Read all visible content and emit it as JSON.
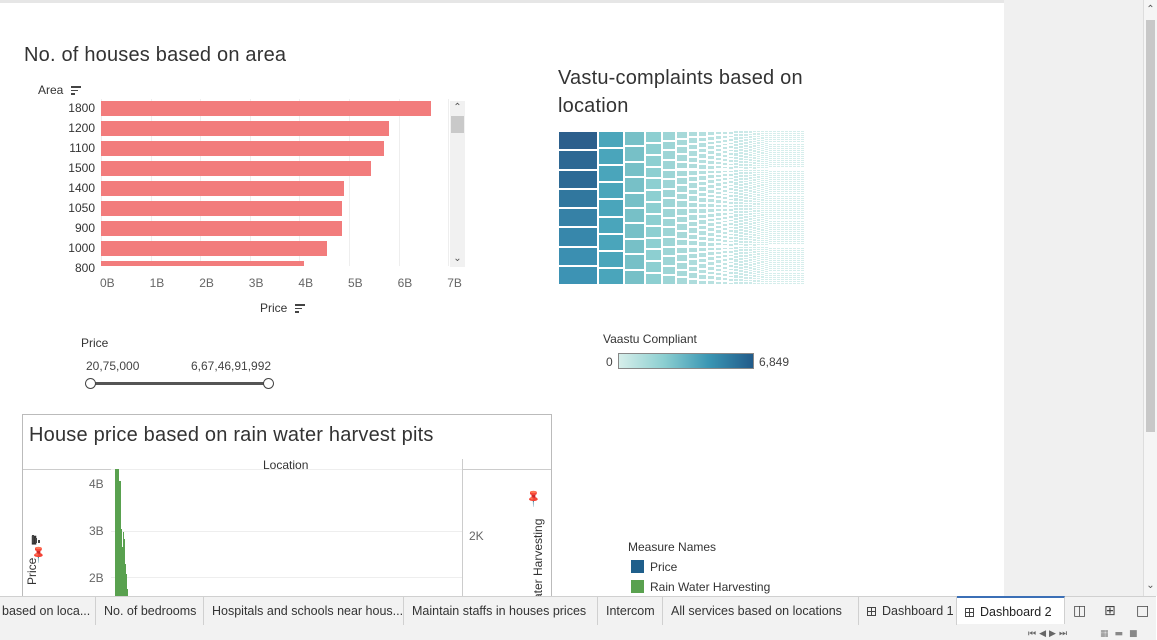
{
  "dashboard": {
    "chart1": {
      "title": "No. of houses based on area",
      "y_field": "Area",
      "x_field": "Price",
      "x_ticks": [
        "0B",
        "1B",
        "2B",
        "3B",
        "4B",
        "5B",
        "6B",
        "7B"
      ],
      "bar_color": "#f27c7c"
    },
    "price_filter": {
      "label": "Price",
      "min": "20,75,000",
      "max": "6,67,46,91,992"
    },
    "chart2": {
      "title_line1": "Vastu-complaints based on",
      "title_line2": "location",
      "legend_title": "Vaastu Compliant",
      "legend_min": "0",
      "legend_max": "6,849",
      "color_low": "#d6eeea",
      "color_high": "#215b8a"
    },
    "chart3": {
      "title": "House price based on rain water harvest pits",
      "header": "Location",
      "y_left_label": "Price",
      "y_right_label": "ater Harvesting",
      "y_left_ticks": [
        "4B",
        "3B",
        "2B"
      ],
      "y_right_ticks": [
        "2K"
      ],
      "bar_color": "#59a14f"
    },
    "measure_legend": {
      "title": "Measure Names",
      "items": [
        {
          "label": "Price",
          "color": "#1f5f8b"
        },
        {
          "label": "Rain Water Harvesting",
          "color": "#59a14f"
        }
      ]
    }
  },
  "chart_data": [
    {
      "type": "bar",
      "title": "No. of houses based on area",
      "xlabel": "Price",
      "ylabel": "Area",
      "categories": [
        "1800",
        "1200",
        "1100",
        "1500",
        "1400",
        "1050",
        "900",
        "1000",
        "800"
      ],
      "values": [
        6.65,
        5.8,
        5.7,
        5.45,
        4.9,
        4.85,
        4.85,
        4.55,
        4.1
      ],
      "unit": "B",
      "xlim": [
        0,
        7
      ]
    }
  ],
  "tabs": [
    {
      "label": "based on loca..."
    },
    {
      "label": "No. of bedrooms"
    },
    {
      "label": "Hospitals and schools near hous..."
    },
    {
      "label": "Maintain staffs in houses prices"
    },
    {
      "label": "Intercom"
    },
    {
      "label": "All services based on locations"
    },
    {
      "label": "Dashboard 1"
    },
    {
      "label": "Dashboard 2"
    }
  ]
}
